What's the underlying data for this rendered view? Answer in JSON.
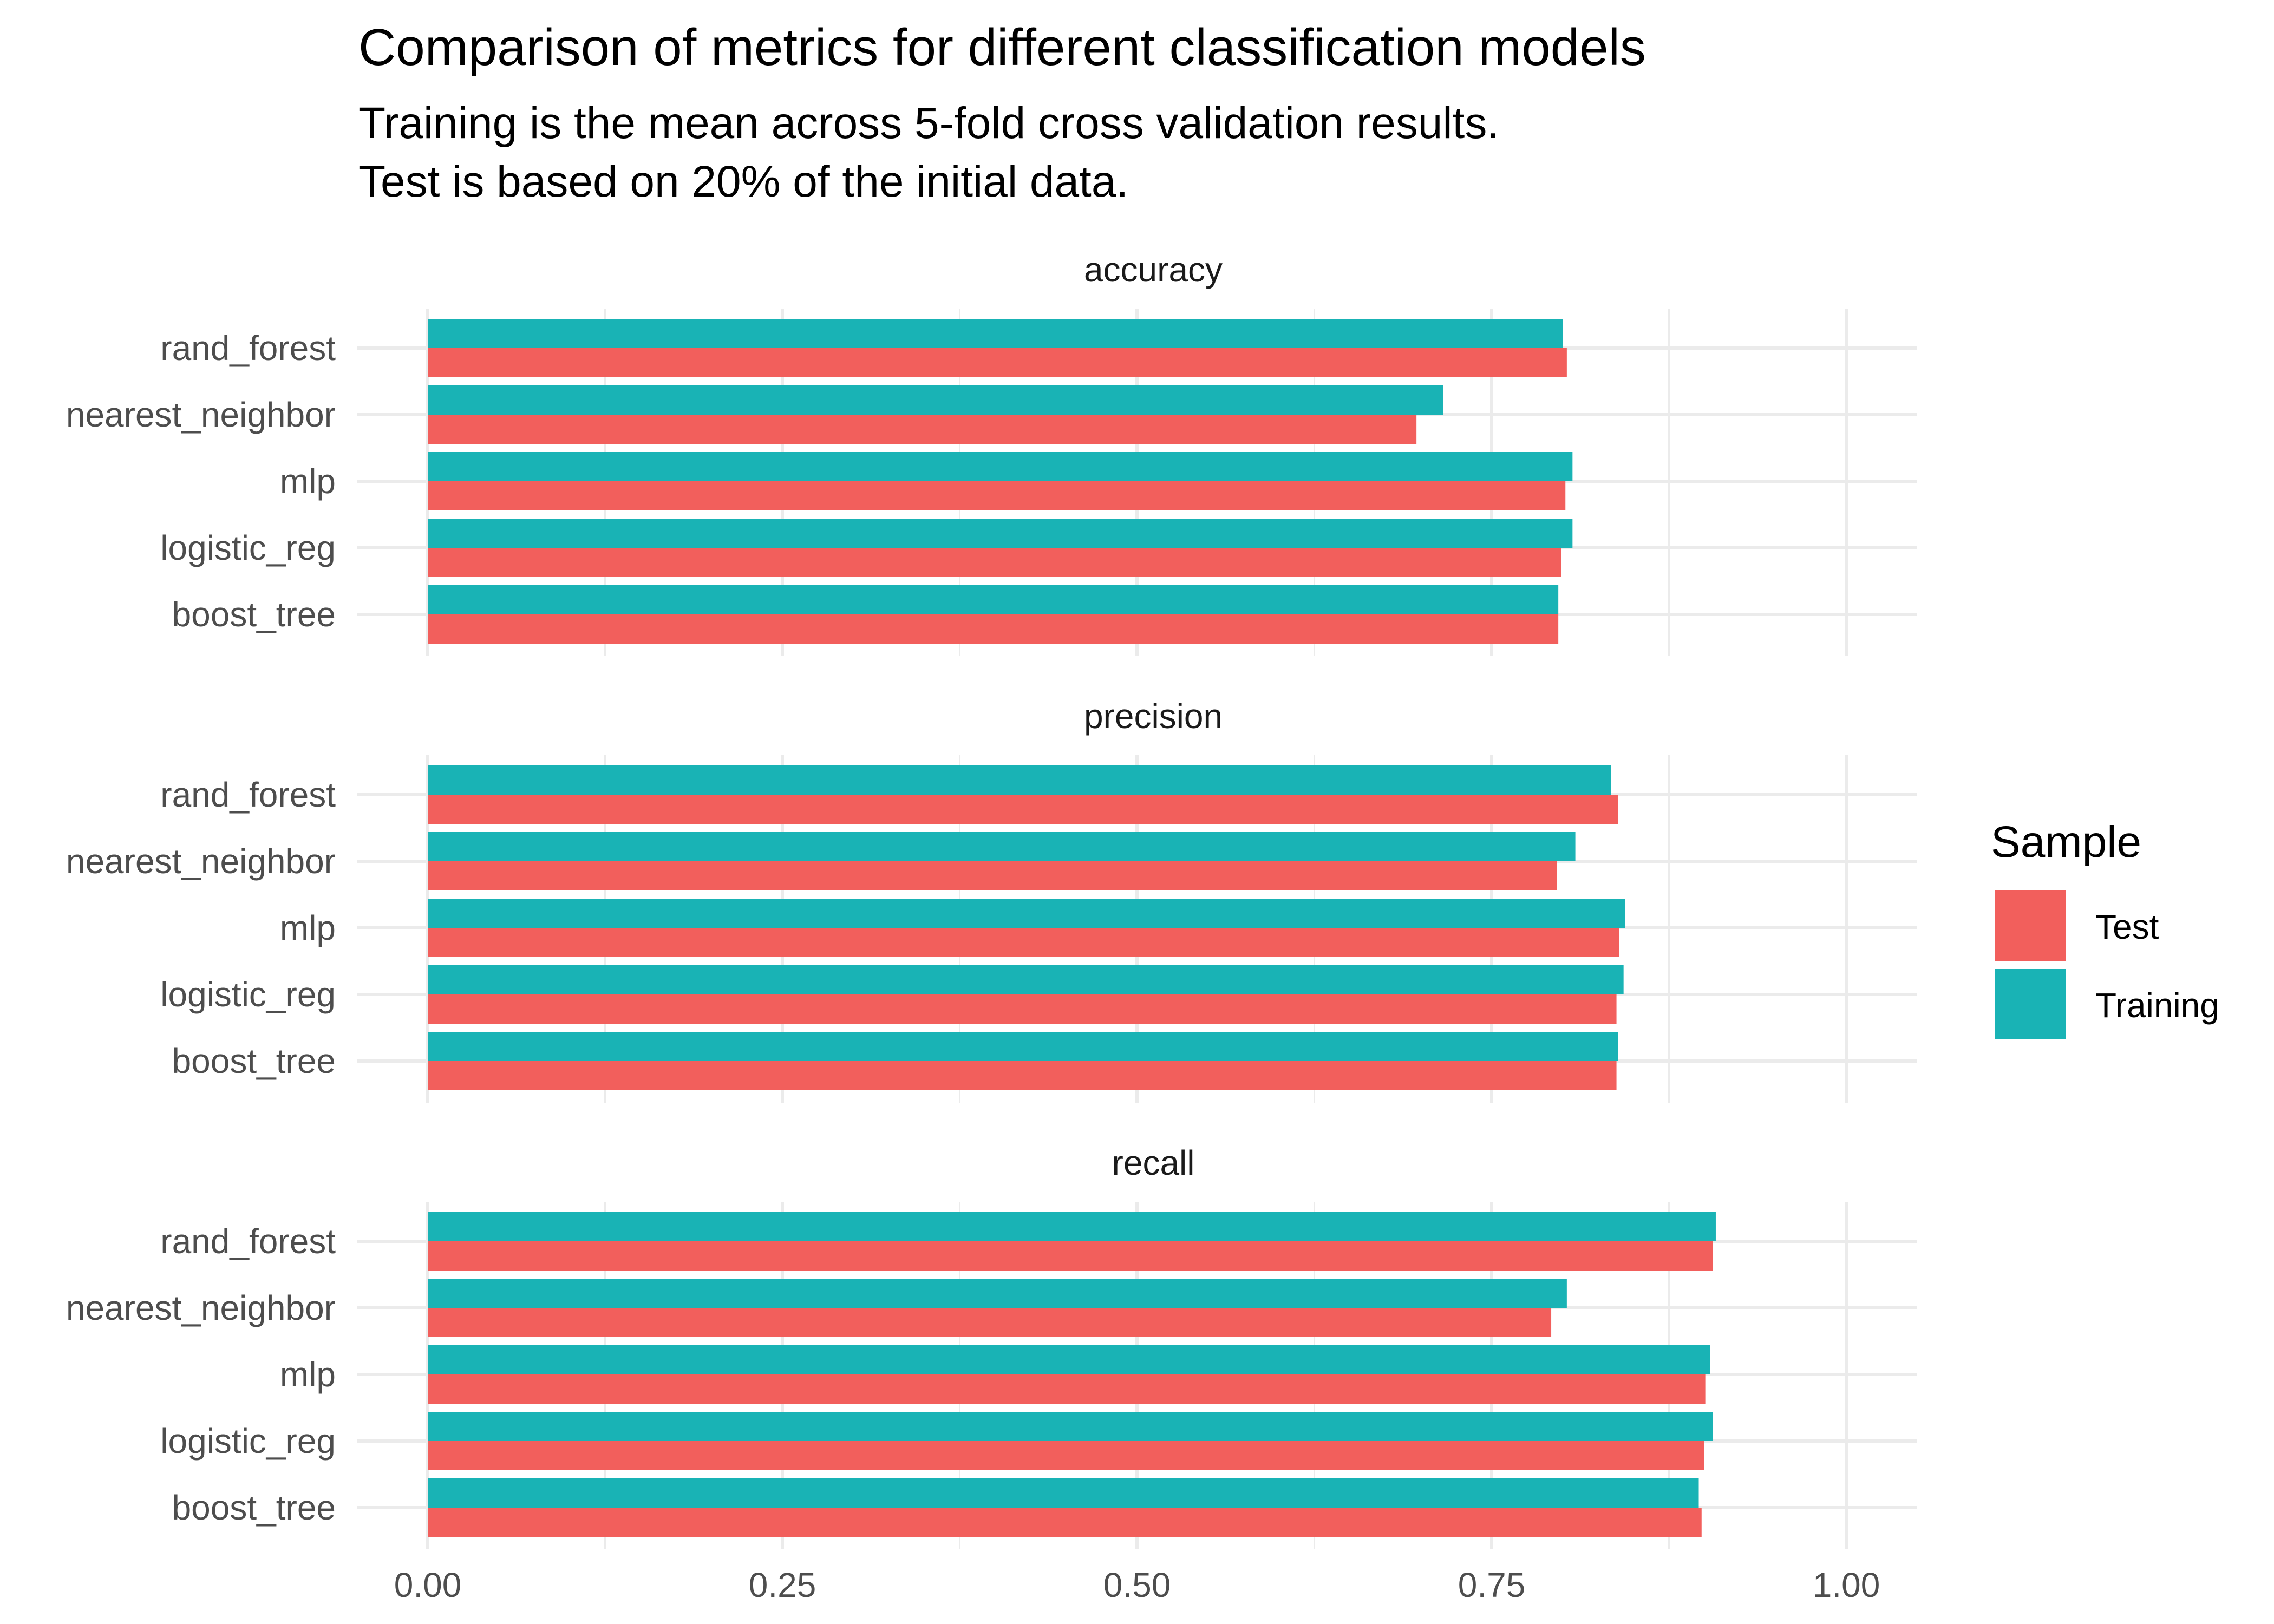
{
  "title": "Comparison of metrics for different classification models",
  "subtitle_lines": [
    "Training is the mean across 5-fold cross validation results.",
    "Test is based on 20% of the initial data."
  ],
  "legend": {
    "title": "Sample",
    "items": [
      {
        "label": "Test",
        "color": "#F25F5C"
      },
      {
        "label": "Training",
        "color": "#19B3B5"
      }
    ]
  },
  "chart_data": {
    "type": "bar",
    "orientation": "horizontal",
    "xlim": [
      0,
      1
    ],
    "x_ticks": [
      "0.00",
      "0.25",
      "0.50",
      "0.75",
      "1.00"
    ],
    "x_tick_values": [
      0,
      0.25,
      0.5,
      0.75,
      1.0
    ],
    "grid": true,
    "legend_position": "right",
    "categories": [
      "rand_forest",
      "nearest_neighbor",
      "mlp",
      "logistic_reg",
      "boost_tree"
    ],
    "panels": [
      {
        "label": "accuracy",
        "series": [
          {
            "name": "Training",
            "values": [
              0.8,
              0.716,
              0.807,
              0.807,
              0.797
            ]
          },
          {
            "name": "Test",
            "values": [
              0.803,
              0.697,
              0.802,
              0.799,
              0.797
            ]
          }
        ]
      },
      {
        "label": "precision",
        "series": [
          {
            "name": "Training",
            "values": [
              0.834,
              0.809,
              0.844,
              0.843,
              0.839
            ]
          },
          {
            "name": "Test",
            "values": [
              0.839,
              0.796,
              0.84,
              0.838,
              0.838
            ]
          }
        ]
      },
      {
        "label": "recall",
        "series": [
          {
            "name": "Training",
            "values": [
              0.908,
              0.803,
              0.904,
              0.906,
              0.896
            ]
          },
          {
            "name": "Test",
            "values": [
              0.906,
              0.792,
              0.901,
              0.9,
              0.898
            ]
          }
        ]
      }
    ]
  }
}
